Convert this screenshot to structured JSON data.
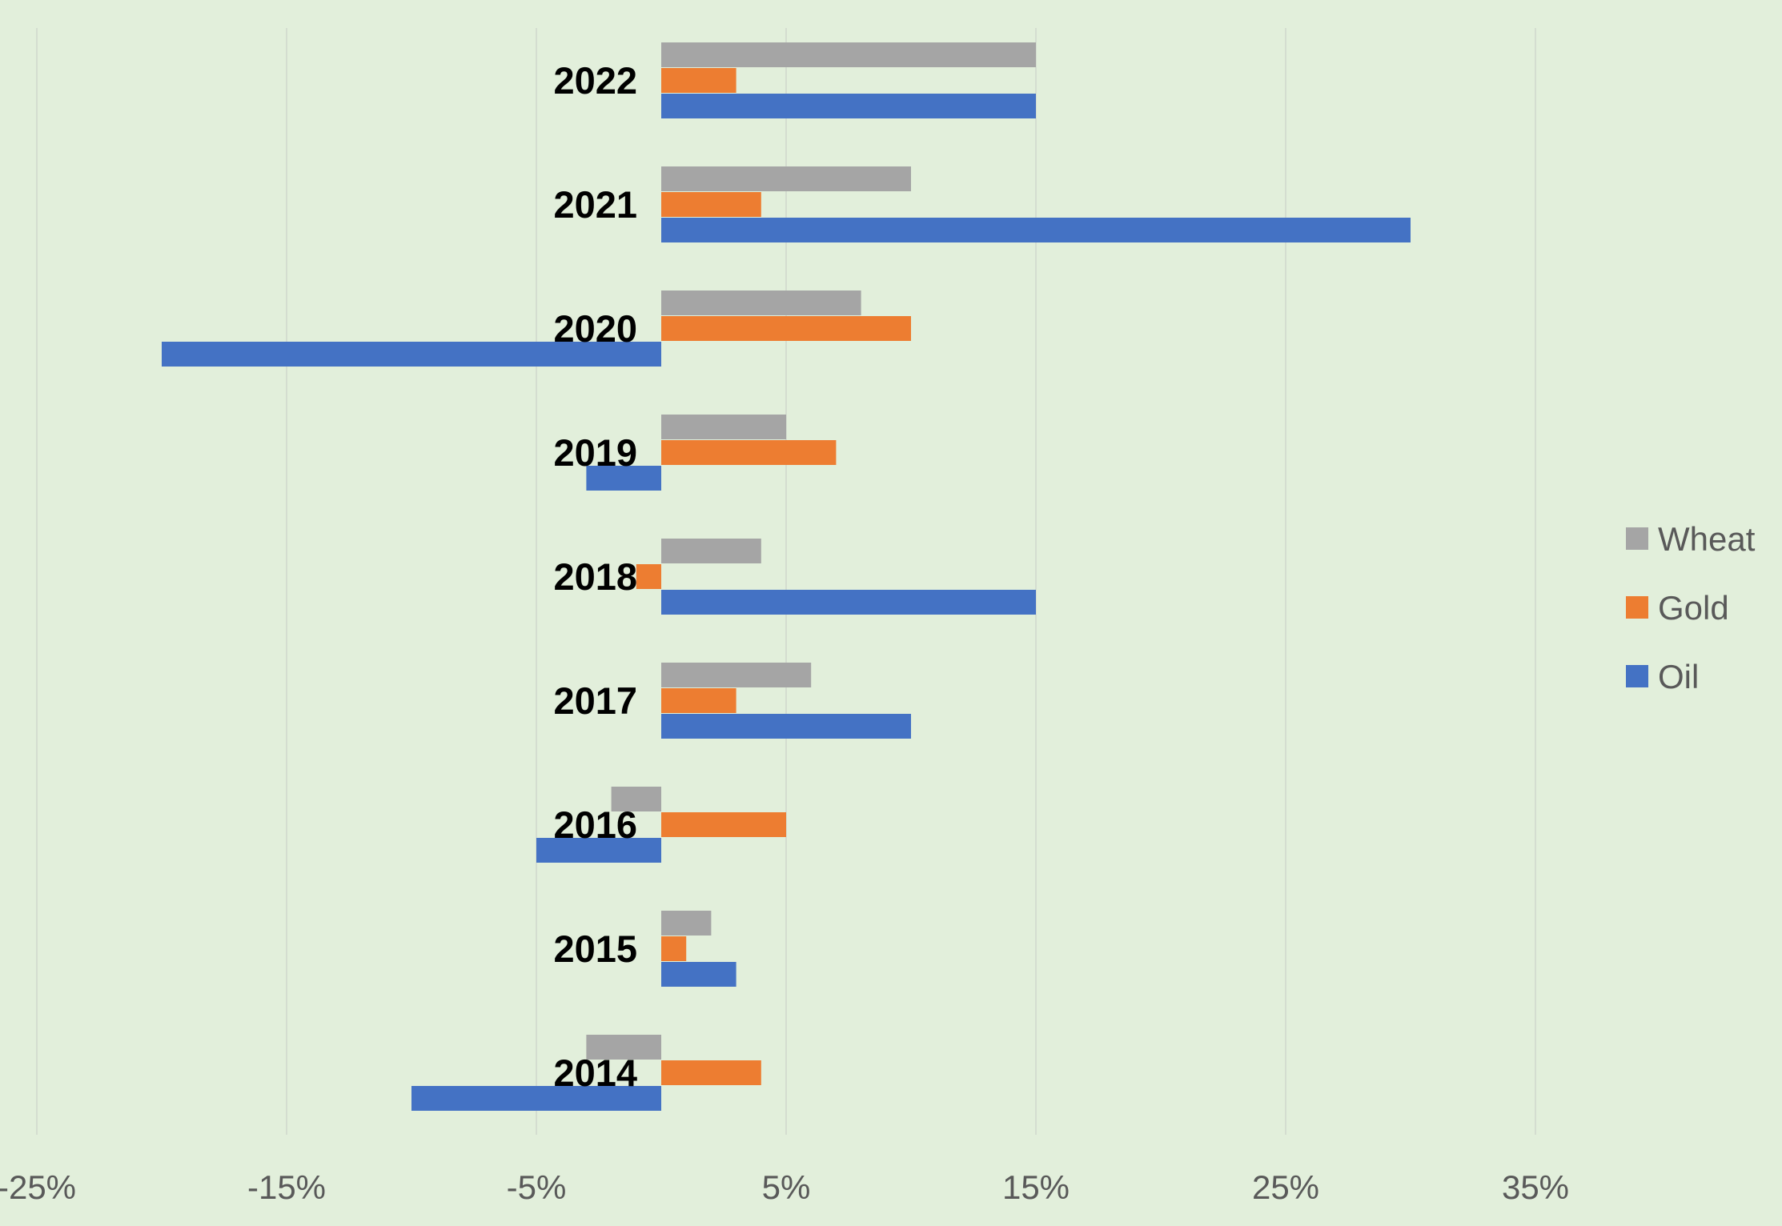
{
  "chart_data": {
    "type": "bar",
    "orientation": "horizontal",
    "categories": [
      "2014",
      "2015",
      "2016",
      "2017",
      "2018",
      "2019",
      "2020",
      "2021",
      "2022"
    ],
    "series": [
      {
        "name": "Wheat",
        "color": "#a5a5a5",
        "values": [
          -3,
          2,
          -2,
          6,
          4,
          5,
          8,
          10,
          15
        ]
      },
      {
        "name": "Gold",
        "color": "#ed7d31",
        "values": [
          4,
          1,
          5,
          3,
          -1,
          7,
          10,
          4,
          3
        ]
      },
      {
        "name": "Oil",
        "color": "#4472c4",
        "values": [
          -10,
          3,
          -5,
          10,
          15,
          -3,
          -20,
          30,
          15
        ]
      }
    ],
    "x_ticks": [
      -25,
      -15,
      -5,
      5,
      15,
      25,
      35
    ],
    "x_tick_labels": [
      "-25%",
      "-15%",
      "-5%",
      "5%",
      "15%",
      "25%",
      "35%"
    ],
    "xlim": [
      -25,
      40
    ],
    "grid": true,
    "legend_position": "right",
    "background_color": "#e2efdb",
    "title": "",
    "xlabel": "",
    "ylabel": ""
  }
}
